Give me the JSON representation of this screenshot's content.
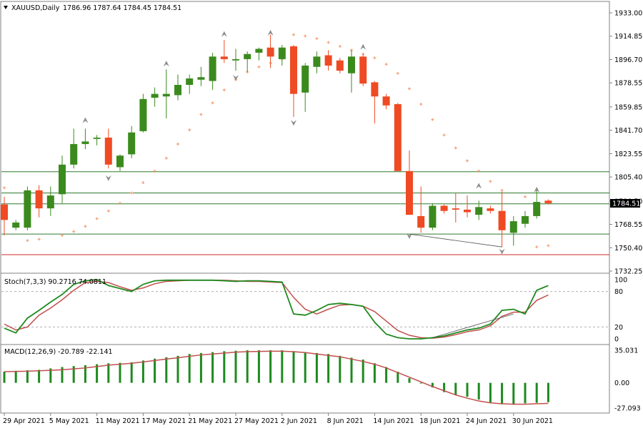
{
  "header": {
    "symbol_label": "XAUUSD,Daily",
    "ohlc_label": "1786.96 1787.64 1784.45 1784.51"
  },
  "stoch": {
    "label": "Stoch(7,3,3) 90.2716 74.0811"
  },
  "macd": {
    "label": "MACD(12,26,9) -20.789 -22.141"
  },
  "current_price_label": "1784.51",
  "colors": {
    "bull": "#3b8a1e",
    "bear": "#ef4a23",
    "grid": "#c0c0c0",
    "sar": "#f4a27c",
    "stoch_main": "#1f8a1f",
    "stoch_signal": "#c0504d",
    "macd_hist": "#1e8a1e",
    "macd_signal": "#c0504d",
    "hline_green": "#2f7a2f",
    "hline_red": "#d22b2b",
    "fractal": "#8c8c8c"
  },
  "chart_data": [
    {
      "type": "candlestick",
      "title": "XAUUSD,Daily",
      "ylim": [
        1732.25,
        1933.0
      ],
      "y_ticks": [
        "1933.00",
        "1914.85",
        "1896.70",
        "1878.55",
        "1859.85",
        "1841.70",
        "1823.55",
        "1805.40",
        "1786.70",
        "1768.55",
        "1750.40",
        "1732.25"
      ],
      "x_tick_labels": [
        "29 Apr 2021",
        "5 May 2021",
        "11 May 2021",
        "17 May 2021",
        "21 May 2021",
        "27 May 2021",
        "2 Jun 2021",
        "8 Jun 2021",
        "14 Jun 2021",
        "18 Jun 2021",
        "24 Jun 2021",
        "30 Jun 2021"
      ],
      "candles": [
        {
          "o": 1784,
          "h": 1790,
          "l": 1760,
          "c": 1772
        },
        {
          "o": 1766,
          "h": 1772,
          "l": 1764,
          "c": 1770
        },
        {
          "o": 1766,
          "h": 1798,
          "l": 1764,
          "c": 1795
        },
        {
          "o": 1795,
          "h": 1799,
          "l": 1774,
          "c": 1781
        },
        {
          "o": 1781,
          "h": 1798,
          "l": 1775,
          "c": 1791
        },
        {
          "o": 1792,
          "h": 1822,
          "l": 1785,
          "c": 1815
        },
        {
          "o": 1815,
          "h": 1843,
          "l": 1812,
          "c": 1831
        },
        {
          "o": 1831,
          "h": 1843,
          "l": 1827,
          "c": 1833
        },
        {
          "o": 1835,
          "h": 1838,
          "l": 1830,
          "c": 1836
        },
        {
          "o": 1836,
          "h": 1843,
          "l": 1812,
          "c": 1815
        },
        {
          "o": 1813,
          "h": 1823,
          "l": 1810,
          "c": 1822
        },
        {
          "o": 1823,
          "h": 1845,
          "l": 1820,
          "c": 1840
        },
        {
          "o": 1841,
          "h": 1870,
          "l": 1840,
          "c": 1866
        },
        {
          "o": 1867,
          "h": 1875,
          "l": 1860,
          "c": 1870
        },
        {
          "o": 1868,
          "h": 1889,
          "l": 1851,
          "c": 1870
        },
        {
          "o": 1869,
          "h": 1885,
          "l": 1865,
          "c": 1877
        },
        {
          "o": 1877,
          "h": 1885,
          "l": 1870,
          "c": 1882
        },
        {
          "o": 1881,
          "h": 1891,
          "l": 1876,
          "c": 1883
        },
        {
          "o": 1880,
          "h": 1902,
          "l": 1873,
          "c": 1899
        },
        {
          "o": 1899,
          "h": 1912,
          "l": 1894,
          "c": 1897
        },
        {
          "o": 1896,
          "h": 1905,
          "l": 1888,
          "c": 1897
        },
        {
          "o": 1897,
          "h": 1903,
          "l": 1887,
          "c": 1901
        },
        {
          "o": 1902,
          "h": 1906,
          "l": 1896,
          "c": 1905
        },
        {
          "o": 1906,
          "h": 1916,
          "l": 1890,
          "c": 1899
        },
        {
          "o": 1897,
          "h": 1908,
          "l": 1892,
          "c": 1906
        },
        {
          "o": 1907,
          "h": 1908,
          "l": 1852,
          "c": 1870
        },
        {
          "o": 1871,
          "h": 1894,
          "l": 1856,
          "c": 1892
        },
        {
          "o": 1891,
          "h": 1903,
          "l": 1886,
          "c": 1899
        },
        {
          "o": 1900,
          "h": 1904,
          "l": 1888,
          "c": 1892
        },
        {
          "o": 1896,
          "h": 1898,
          "l": 1886,
          "c": 1888
        },
        {
          "o": 1886,
          "h": 1904,
          "l": 1871,
          "c": 1899
        },
        {
          "o": 1899,
          "h": 1901,
          "l": 1876,
          "c": 1878
        },
        {
          "o": 1879,
          "h": 1880,
          "l": 1847,
          "c": 1868
        },
        {
          "o": 1868,
          "h": 1870,
          "l": 1858,
          "c": 1861
        },
        {
          "o": 1862,
          "h": 1863,
          "l": 1810,
          "c": 1810
        },
        {
          "o": 1810,
          "h": 1826,
          "l": 1776,
          "c": 1776
        },
        {
          "o": 1775,
          "h": 1798,
          "l": 1762,
          "c": 1766
        },
        {
          "o": 1766,
          "h": 1785,
          "l": 1764,
          "c": 1783
        },
        {
          "o": 1783,
          "h": 1784,
          "l": 1777,
          "c": 1779
        },
        {
          "o": 1781,
          "h": 1793,
          "l": 1770,
          "c": 1780
        },
        {
          "o": 1780,
          "h": 1791,
          "l": 1774,
          "c": 1778
        },
        {
          "o": 1776,
          "h": 1787,
          "l": 1772,
          "c": 1782
        },
        {
          "o": 1781,
          "h": 1783,
          "l": 1777,
          "c": 1779
        },
        {
          "o": 1779,
          "h": 1794,
          "l": 1751,
          "c": 1764
        },
        {
          "o": 1762,
          "h": 1775,
          "l": 1752,
          "c": 1771
        },
        {
          "o": 1769,
          "h": 1779,
          "l": 1766,
          "c": 1775
        },
        {
          "o": 1775,
          "h": 1795,
          "l": 1773,
          "c": 1786
        },
        {
          "o": 1787,
          "h": 1788,
          "l": 1784,
          "c": 1785
        }
      ],
      "parabolic_sar": [
        [
          0,
          1797
        ],
        [
          2,
          1756
        ],
        [
          3,
          1757
        ],
        [
          5,
          1760
        ],
        [
          6,
          1763
        ],
        [
          7,
          1767
        ],
        [
          8,
          1773
        ],
        [
          9,
          1779
        ],
        [
          10,
          1785
        ],
        [
          11,
          1793
        ],
        [
          12,
          1801
        ],
        [
          13,
          1810
        ],
        [
          14,
          1820
        ],
        [
          15,
          1831
        ],
        [
          16,
          1842
        ],
        [
          17,
          1854
        ],
        [
          18,
          1863
        ],
        [
          19,
          1873
        ],
        [
          20,
          1881
        ],
        [
          21,
          1887
        ],
        [
          22,
          1891
        ],
        [
          23,
          1894
        ],
        [
          24,
          1897
        ],
        [
          25,
          1916
        ],
        [
          26,
          1915
        ],
        [
          27,
          1913
        ],
        [
          28,
          1910
        ],
        [
          29,
          1907
        ],
        [
          30,
          1904
        ],
        [
          31,
          1901
        ],
        [
          32,
          1898
        ],
        [
          33,
          1893
        ],
        [
          34,
          1886
        ],
        [
          35,
          1874
        ],
        [
          36,
          1862
        ],
        [
          37,
          1850
        ],
        [
          38,
          1838
        ],
        [
          39,
          1828
        ],
        [
          40,
          1818
        ],
        [
          41,
          1810
        ],
        [
          42,
          1802
        ],
        [
          43,
          1795
        ],
        [
          45,
          1790
        ],
        [
          46,
          1751
        ],
        [
          47,
          1752
        ]
      ],
      "fractals_up": [
        [
          7,
          1849
        ],
        [
          14,
          1893
        ],
        [
          19,
          1916
        ],
        [
          23,
          1917
        ],
        [
          31,
          1906
        ],
        [
          41,
          1798
        ],
        [
          46,
          1795
        ]
      ],
      "fractals_down": [
        [
          9,
          1805
        ],
        [
          20,
          1883
        ],
        [
          25,
          1848
        ],
        [
          35,
          1760
        ],
        [
          43,
          1748
        ]
      ],
      "horizontal_lines": [
        {
          "y": 1809.5,
          "color": "green"
        },
        {
          "y": 1793.0,
          "color": "green"
        },
        {
          "y": 1784.51,
          "color": "green"
        },
        {
          "y": 1761.0,
          "color": "green"
        },
        {
          "y": 1745.0,
          "color": "red"
        }
      ],
      "trendline": [
        [
          35,
          1761
        ],
        [
          43,
          1751
        ]
      ]
    },
    {
      "type": "line",
      "title": "Stoch(7,3,3) 90.2716 74.0811",
      "ylim": [
        0,
        100
      ],
      "y_ticks": [
        100,
        80,
        20,
        0
      ],
      "series": [
        {
          "name": "main",
          "values": [
            18,
            10,
            35,
            48,
            62,
            75,
            92,
            98,
            100,
            90,
            85,
            80,
            92,
            98,
            99,
            99,
            99,
            99,
            99,
            98,
            97,
            98,
            98,
            97,
            96,
            42,
            40,
            48,
            58,
            60,
            58,
            55,
            28,
            8,
            2,
            0,
            0,
            2,
            5,
            10,
            15,
            18,
            25,
            48,
            50,
            42,
            82,
            90
          ]
        },
        {
          "name": "signal",
          "values": [
            25,
            15,
            20,
            40,
            52,
            66,
            82,
            95,
            97,
            95,
            88,
            82,
            86,
            93,
            97,
            98,
            99,
            99,
            99,
            99,
            98,
            97,
            97,
            96,
            95,
            70,
            50,
            42,
            50,
            57,
            58,
            55,
            46,
            30,
            14,
            6,
            2,
            1,
            3,
            7,
            12,
            15,
            22,
            38,
            45,
            45,
            65,
            74
          ]
        }
      ],
      "trendline": [
        [
          37,
          2
        ],
        [
          44,
          42
        ]
      ]
    },
    {
      "type": "bar",
      "title": "MACD(12,26,9) -20.789 -22.141",
      "ylim": [
        -27.093,
        35.031
      ],
      "y_ticks": [
        "35.031",
        "0.00",
        "-27.093"
      ],
      "series": [
        {
          "name": "histogram",
          "values": [
            12,
            13,
            13.5,
            14,
            15.5,
            17,
            18,
            19,
            20,
            21,
            21.5,
            22,
            24,
            26,
            27.5,
            29,
            31,
            32,
            33,
            34,
            34.5,
            35,
            35,
            35,
            35,
            34,
            33,
            32,
            31,
            29,
            27,
            25,
            21,
            17,
            12,
            5,
            0,
            -5,
            -10,
            -13,
            -15,
            -18,
            -21,
            -23,
            -23.5,
            -22,
            -21.5,
            -20.8
          ]
        },
        {
          "name": "signal",
          "values": [
            12,
            12.2,
            12.5,
            13,
            13.5,
            14,
            15,
            16,
            17.5,
            19,
            20,
            21,
            22.5,
            24,
            25.5,
            27,
            28.5,
            30,
            31,
            32,
            33,
            33.5,
            33.8,
            34,
            34,
            33.5,
            32.5,
            31,
            29.5,
            28,
            25.5,
            23,
            20,
            16,
            11,
            6,
            1,
            -4,
            -8.5,
            -13,
            -16.5,
            -19.5,
            -21.5,
            -22.5,
            -23,
            -23,
            -22.5,
            -22.1
          ]
        }
      ]
    }
  ]
}
